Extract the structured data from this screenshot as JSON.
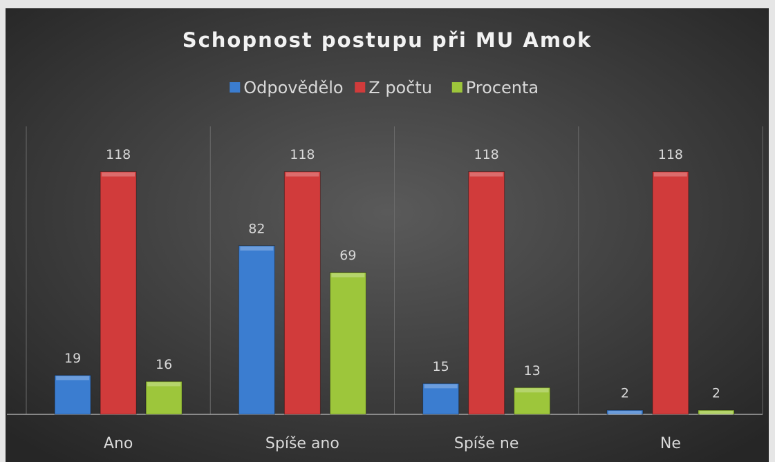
{
  "chart_data": {
    "type": "bar",
    "title": "Schopnost postupu při MU Amok",
    "categories": [
      "Ano",
      "Spíše ano",
      "Spíše ne",
      "Ne"
    ],
    "series": [
      {
        "name": "Odpovědělo",
        "color": "#3b7dd0",
        "values": [
          19,
          82,
          15,
          2
        ]
      },
      {
        "name": "Z počtu",
        "color": "#d13b3b",
        "values": [
          118,
          118,
          118,
          118
        ]
      },
      {
        "name": "Procenta",
        "color": "#9dc63b",
        "values": [
          16,
          69,
          13,
          2
        ]
      }
    ],
    "ylim": [
      0,
      140
    ],
    "legend": "top"
  }
}
